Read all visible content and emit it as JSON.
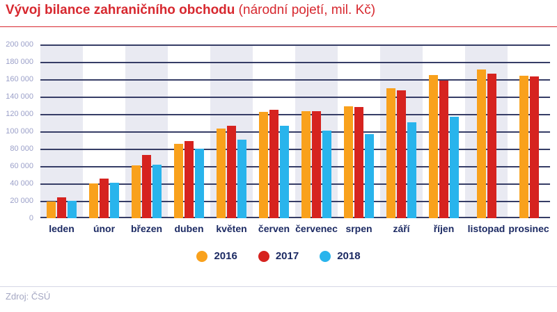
{
  "header": {
    "title": "Vývoj bilance zahraničního obchodu",
    "subtitle": "(národní pojetí, mil. Kč)"
  },
  "footer": {
    "source": "Zdroj: ČSÚ"
  },
  "colors": {
    "title_red": "#d7282f",
    "navy_text": "#1c2a63",
    "grid_line": "#363d66",
    "column_band": "#e9eaf2",
    "y_label": "#9ba0c9",
    "footer_text": "#a4a7c2",
    "footer_line": "#d5d7e5"
  },
  "chart_data": {
    "type": "bar",
    "title": "Vývoj bilance zahraničního obchodu (národní pojetí, mil. Kč)",
    "xlabel": "",
    "ylabel": "",
    "ylim": [
      0,
      200000
    ],
    "grid": "horizontal",
    "legend_position": "bottom",
    "background": "alternating-column-bands",
    "categories": [
      "leden",
      "únor",
      "březen",
      "duben",
      "květen",
      "červen",
      "červenec",
      "srpen",
      "září",
      "říjen",
      "listopad",
      "prosinec"
    ],
    "yticks": [
      {
        "value": 0,
        "label": "0"
      },
      {
        "value": 20000,
        "label": "20 000"
      },
      {
        "value": 40000,
        "label": "40 000"
      },
      {
        "value": 60000,
        "label": "60 000"
      },
      {
        "value": 80000,
        "label": "80 000"
      },
      {
        "value": 100000,
        "label": "100 000"
      },
      {
        "value": 120000,
        "label": "120 000"
      },
      {
        "value": 140000,
        "label": "140 000"
      },
      {
        "value": 160000,
        "label": "160 000"
      },
      {
        "value": 180000,
        "label": "180 000"
      },
      {
        "value": 200000,
        "label": "200 000"
      }
    ],
    "series": [
      {
        "name": "2016",
        "color": "#f9a11c",
        "values": [
          19000,
          40000,
          61000,
          85500,
          103500,
          122500,
          123000,
          129000,
          149500,
          165000,
          171500,
          164000
        ]
      },
      {
        "name": "2017",
        "color": "#d6231f",
        "values": [
          24000,
          45500,
          73000,
          89000,
          106000,
          125000,
          123500,
          128000,
          147000,
          158000,
          166500,
          163500
        ]
      },
      {
        "name": "2018",
        "color": "#29b4ec",
        "values": [
          20000,
          40500,
          61500,
          80000,
          90000,
          106000,
          100500,
          97000,
          110000,
          116500,
          null,
          null
        ]
      }
    ]
  }
}
